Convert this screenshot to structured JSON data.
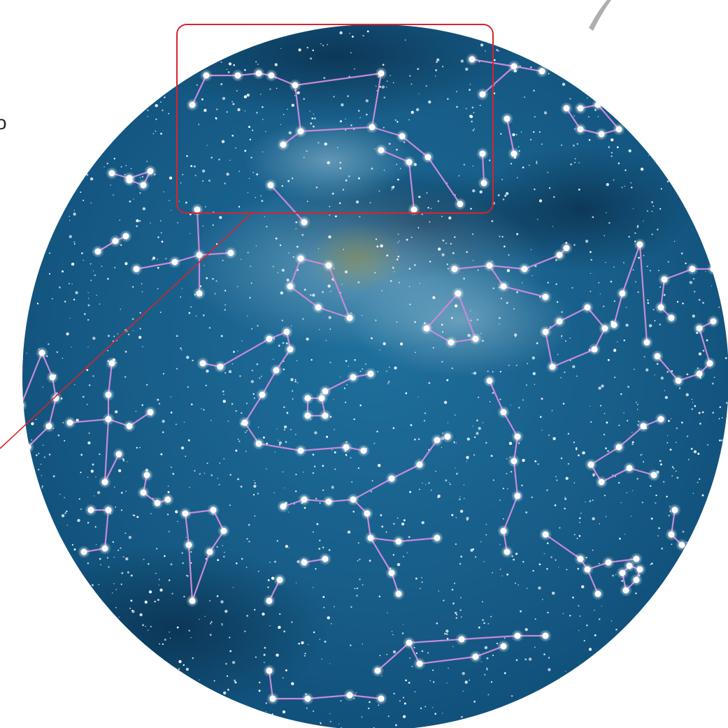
{
  "fragment_text": "o"
}
